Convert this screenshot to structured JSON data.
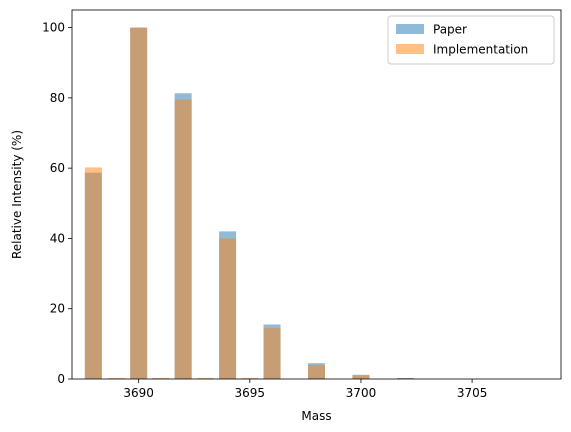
{
  "chart_data": {
    "type": "bar",
    "xlabel": "Mass",
    "ylabel": "Relative Intensity (%)",
    "xlim": [
      3687.0,
      3709.0
    ],
    "ylim": [
      0,
      105
    ],
    "x_ticks": [
      3690,
      3695,
      3700,
      3705
    ],
    "y_ticks": [
      0,
      20,
      40,
      60,
      80,
      100
    ],
    "legend_position": "top-right",
    "series": [
      {
        "name": "Paper",
        "color": "#1f77b4",
        "opacity": 0.5,
        "x": [
          3687.96,
          3690.0,
          3692.0,
          3694.0,
          3696.0,
          3698.0,
          3700.0,
          3702.0
        ],
        "values": [
          58.7,
          100.0,
          81.3,
          42.0,
          15.5,
          4.5,
          1.2,
          0.3
        ]
      },
      {
        "name": "Implementation",
        "color": "#ff7f0e",
        "opacity": 0.5,
        "x": [
          3687.96,
          3689.0,
          3690.0,
          3691.0,
          3692.0,
          3693.0,
          3694.0,
          3695.0,
          3696.0,
          3698.0,
          3700.0,
          3701.0,
          3702.0
        ],
        "values": [
          60.2,
          0.3,
          100.0,
          0.3,
          79.5,
          0.3,
          40.0,
          0.3,
          14.5,
          4.0,
          1.0,
          0.1,
          0.2
        ]
      }
    ]
  }
}
